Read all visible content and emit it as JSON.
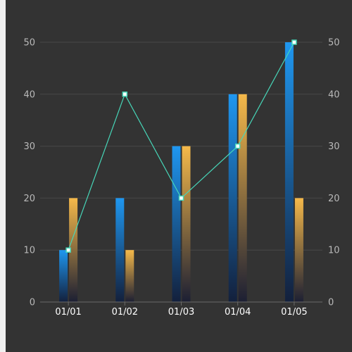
{
  "colors": {
    "panel": "#333333",
    "grid": "#474747",
    "axis": "#6a6a6a",
    "bar_a_top": "#1f97f0",
    "bar_a_bottom": "#13203c",
    "bar_b_top": "#f5b94a",
    "bar_b_bottom": "#1c1f33",
    "line": "#47d6b8",
    "marker_fill": "#ffffff"
  },
  "chart_data": {
    "type": "bar",
    "categories": [
      "01/01",
      "01/02",
      "01/03",
      "01/04",
      "01/05"
    ],
    "series": [
      {
        "type": "bar",
        "values": [
          10,
          20,
          30,
          40,
          50
        ]
      },
      {
        "type": "bar",
        "values": [
          20,
          10,
          30,
          40,
          20
        ]
      },
      {
        "type": "line",
        "values": [
          10,
          40,
          20,
          30,
          50
        ]
      }
    ],
    "ylim": [
      0,
      50
    ],
    "y_ticks": [
      0,
      10,
      20,
      30,
      40,
      50
    ],
    "grid": true,
    "legend": "none",
    "secondary_y_axis": true
  }
}
